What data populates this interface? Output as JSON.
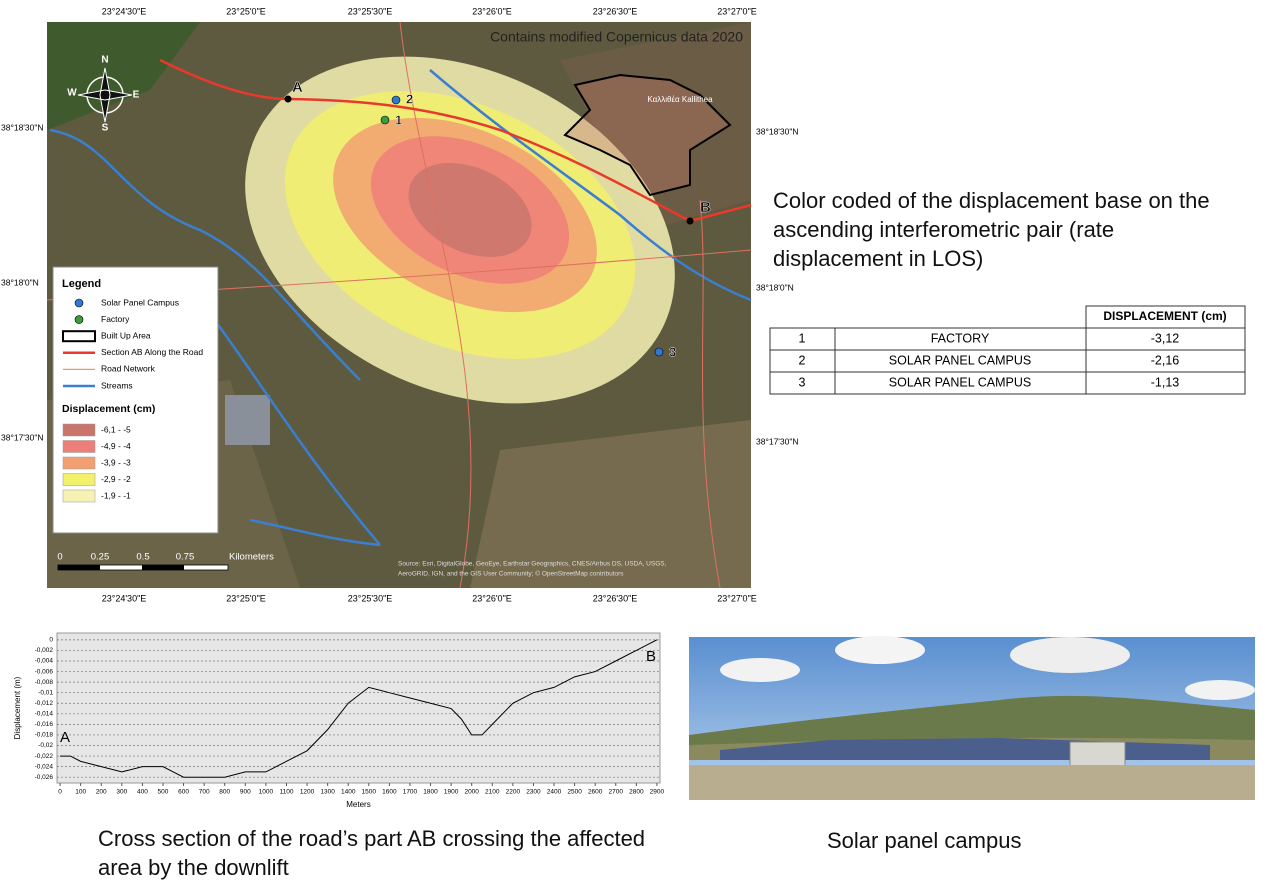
{
  "map": {
    "credit": "Contains modified Copernicus data 2020",
    "top_coords": [
      "23°24'30\"E",
      "23°25'0\"E",
      "23°25'30\"E",
      "23°26'0\"E",
      "23°26'30\"E",
      "23°27'0\"E"
    ],
    "bottom_coords": [
      "23°24'30\"E",
      "23°25'0\"E",
      "23°25'30\"E",
      "23°26'0\"E",
      "23°26'30\"E",
      "23°27'0\"E"
    ],
    "left_coords": [
      "38°18'30\"N",
      "38°18'0\"N",
      "38°17'30\"N"
    ],
    "right_coords": [
      "38°18'30\"N",
      "38°18'0\"N",
      "38°17'30\"N"
    ],
    "compass": [
      "N",
      "E",
      "S",
      "W"
    ],
    "points": [
      "A",
      "2",
      "1",
      "B",
      "3"
    ],
    "town": "Καλλιθέα Kallithea",
    "legend": {
      "title": "Legend",
      "items": [
        "Solar Panel Campus",
        "Factory",
        "Built Up Area",
        "Section AB Along the Road",
        "Road Network",
        "Streams"
      ],
      "displacement_title": "Displacement (cm)",
      "classes": [
        {
          "label": "-6,1 - -5",
          "color": "#c9756c"
        },
        {
          "label": "-4,9 - -4",
          "color": "#ee7f78"
        },
        {
          "label": "-3,9 - -3",
          "color": "#f2a072"
        },
        {
          "label": "-2,9 - -2",
          "color": "#f3f06c"
        },
        {
          "label": "-1,9 - -1",
          "color": "#f6f2b4"
        }
      ]
    },
    "scale": [
      "0",
      "0.25",
      "0.5",
      "0.75",
      "Kilometers"
    ],
    "source": [
      "Source: Esri, DigitalGlobe, GeoEye, Earthstar Geographics, CNES/Airbus DS, USDA, USGS,",
      "AeroGRID, IGN, and the GIS User Community; © OpenStreetMap contributors"
    ]
  },
  "description": "Color coded of the displacement base on the ascending interferometric pair (rate displacement in LOS)",
  "table": {
    "header": "DISPLACEMENT (cm)",
    "rows": [
      [
        "1",
        "FACTORY",
        "-3,12"
      ],
      [
        "2",
        "SOLAR PANEL CAMPUS",
        "-2,16"
      ],
      [
        "3",
        "SOLAR PANEL CAMPUS",
        "-1,13"
      ]
    ]
  },
  "chart_data": {
    "type": "line",
    "y_label": "Displacement (m)",
    "x_label": "Meters",
    "annotations": [
      "A",
      "B"
    ],
    "x": [
      0,
      50,
      100,
      200,
      300,
      400,
      500,
      550,
      600,
      700,
      800,
      900,
      1000,
      1100,
      1200,
      1300,
      1400,
      1500,
      1600,
      1700,
      1800,
      1900,
      1950,
      2000,
      2050,
      2100,
      2200,
      2300,
      2400,
      2500,
      2600,
      2700,
      2800,
      2900
    ],
    "series": [
      {
        "name": "Displacement",
        "color": "#000000",
        "values": [
          -0.022,
          -0.022,
          -0.023,
          -0.024,
          -0.025,
          -0.024,
          -0.024,
          -0.025,
          -0.026,
          -0.026,
          -0.026,
          -0.025,
          -0.025,
          -0.023,
          -0.021,
          -0.017,
          -0.012,
          -0.009,
          -0.01,
          -0.011,
          -0.012,
          -0.013,
          -0.015,
          -0.018,
          -0.018,
          -0.016,
          -0.012,
          -0.01,
          -0.009,
          -0.007,
          -0.006,
          -0.004,
          -0.002,
          0
        ]
      }
    ],
    "xlim": [
      -15,
      2915
    ],
    "ylim": [
      -0.0271,
      0.0013
    ],
    "xticks": [
      0,
      100,
      200,
      300,
      400,
      500,
      600,
      700,
      800,
      900,
      1000,
      1100,
      1200,
      1300,
      1400,
      1500,
      1600,
      1700,
      1800,
      1900,
      2000,
      2100,
      2200,
      2300,
      2400,
      2500,
      2600,
      2700,
      2800,
      2900
    ],
    "yticks": [
      0,
      {
        "value": -0.002,
        "label": "-0,002"
      },
      {
        "value": -0.004,
        "label": "-0,004"
      },
      {
        "value": -0.006,
        "label": "-0,006"
      },
      {
        "value": -0.008,
        "label": "-0,008"
      },
      {
        "value": -0.01,
        "label": "-0,01"
      },
      {
        "value": -0.012,
        "label": "-0,012"
      },
      {
        "value": -0.014,
        "label": "-0,014"
      },
      {
        "value": -0.016,
        "label": "-0,016"
      },
      {
        "value": -0.018,
        "label": "-0,018"
      },
      {
        "value": -0.02,
        "label": "-0,02"
      },
      {
        "value": -0.022,
        "label": "-0,022"
      },
      {
        "value": -0.024,
        "label": "-0,024"
      },
      {
        "value": -0.026,
        "label": "-0,026"
      }
    ],
    "grid": true
  },
  "cross_section_caption": "Cross section of the road’s part AB crossing the affected area by the downlift",
  "photo_caption": "Solar panel campus"
}
